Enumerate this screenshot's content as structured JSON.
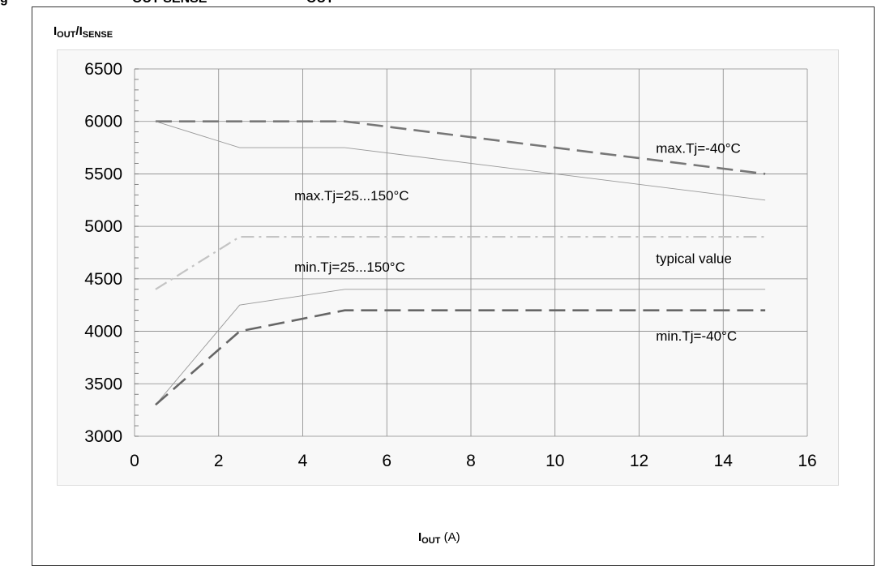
{
  "chart_data": {
    "type": "line",
    "ylabel": {
      "main": "I",
      "sub1": "OUT",
      "sep": "/I",
      "sub2": "SENSE"
    },
    "xlabel": {
      "main": "I",
      "sub": "OUT",
      "unit": "(A)"
    },
    "xlim": [
      0,
      16
    ],
    "ylim": [
      3000,
      6500
    ],
    "xticks": [
      0,
      2,
      4,
      6,
      8,
      10,
      12,
      14,
      16
    ],
    "yticks": [
      3000,
      3500,
      4000,
      4500,
      5000,
      5500,
      6000,
      6500
    ],
    "grid": true,
    "series": [
      {
        "name": "max.Tj=-40°C",
        "style": "dashed",
        "color": "#777777",
        "x": [
          0.5,
          2.5,
          5,
          15
        ],
        "y": [
          6000,
          6000,
          6000,
          5500
        ]
      },
      {
        "name": "max.Tj=25...150°C",
        "style": "solid-thin",
        "color": "#999999",
        "x": [
          0.5,
          2.5,
          5,
          15
        ],
        "y": [
          6000,
          5750,
          5750,
          5250
        ]
      },
      {
        "name": "typical value",
        "style": "dashdot",
        "color": "#c4c4c4",
        "x": [
          0.5,
          2.5,
          5,
          15
        ],
        "y": [
          4400,
          4900,
          4900,
          4900
        ]
      },
      {
        "name": "min.Tj=25...150°C",
        "style": "solid-thin",
        "color": "#999999",
        "x": [
          0.5,
          2.5,
          5,
          15
        ],
        "y": [
          3300,
          4250,
          4400,
          4400
        ]
      },
      {
        "name": "min.Tj=-40°C",
        "style": "dashed",
        "color": "#666666",
        "x": [
          0.5,
          2.5,
          5,
          15
        ],
        "y": [
          3300,
          4000,
          4200,
          4200
        ]
      }
    ],
    "annotations": [
      {
        "text": "max.Tj=-40°C",
        "x": 12.4,
        "y": 5700
      },
      {
        "text": "max.Tj=25...150°C",
        "x": 3.8,
        "y": 5250
      },
      {
        "text": "typical value",
        "x": 12.4,
        "y": 4650
      },
      {
        "text": "min.Tj=25...150°C",
        "x": 3.8,
        "y": 4570
      },
      {
        "text": "min.Tj=-40°C",
        "x": 12.4,
        "y": 3910
      }
    ]
  },
  "caption_fragment": [
    "g",
    "OUT  SENSE",
    "OUT"
  ]
}
